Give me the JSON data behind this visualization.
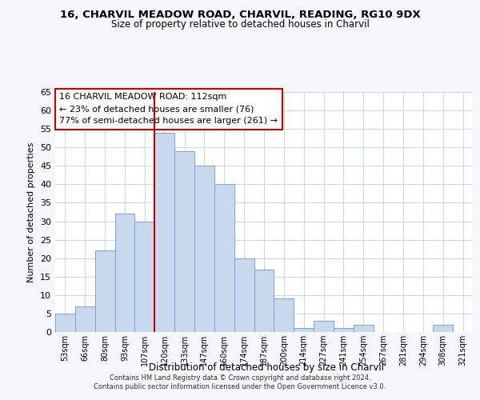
{
  "title": "16, CHARVIL MEADOW ROAD, CHARVIL, READING, RG10 9DX",
  "subtitle": "Size of property relative to detached houses in Charvil",
  "xlabel": "Distribution of detached houses by size in Charvil",
  "ylabel": "Number of detached properties",
  "bar_labels": [
    "53sqm",
    "66sqm",
    "80sqm",
    "93sqm",
    "107sqm",
    "120sqm",
    "133sqm",
    "147sqm",
    "160sqm",
    "174sqm",
    "187sqm",
    "200sqm",
    "214sqm",
    "227sqm",
    "241sqm",
    "254sqm",
    "267sqm",
    "281sqm",
    "294sqm",
    "308sqm",
    "321sqm"
  ],
  "bar_values": [
    5,
    7,
    22,
    32,
    30,
    54,
    49,
    45,
    40,
    20,
    17,
    9,
    1,
    3,
    1,
    2,
    0,
    0,
    0,
    2,
    0
  ],
  "bar_color": "#c8d9ee",
  "bar_edge_color": "#7ba3cc",
  "grid_color": "#c8d4e8",
  "ylim": [
    0,
    65
  ],
  "yticks": [
    0,
    5,
    10,
    15,
    20,
    25,
    30,
    35,
    40,
    45,
    50,
    55,
    60,
    65
  ],
  "vline_x": 4.5,
  "vline_color": "#cc0000",
  "annotation_title": "16 CHARVIL MEADOW ROAD: 112sqm",
  "annotation_line1": "← 23% of detached houses are smaller (76)",
  "annotation_line2": "77% of semi-detached houses are larger (261) →",
  "annotation_box_color": "#ffffff",
  "annotation_box_edge": "#cc0000",
  "footer1": "Contains HM Land Registry data © Crown copyright and database right 2024.",
  "footer2": "Contains public sector information licensed under the Open Government Licence v3.0.",
  "bg_color": "#ffffff",
  "fig_bg_color": "#f5f7fc"
}
